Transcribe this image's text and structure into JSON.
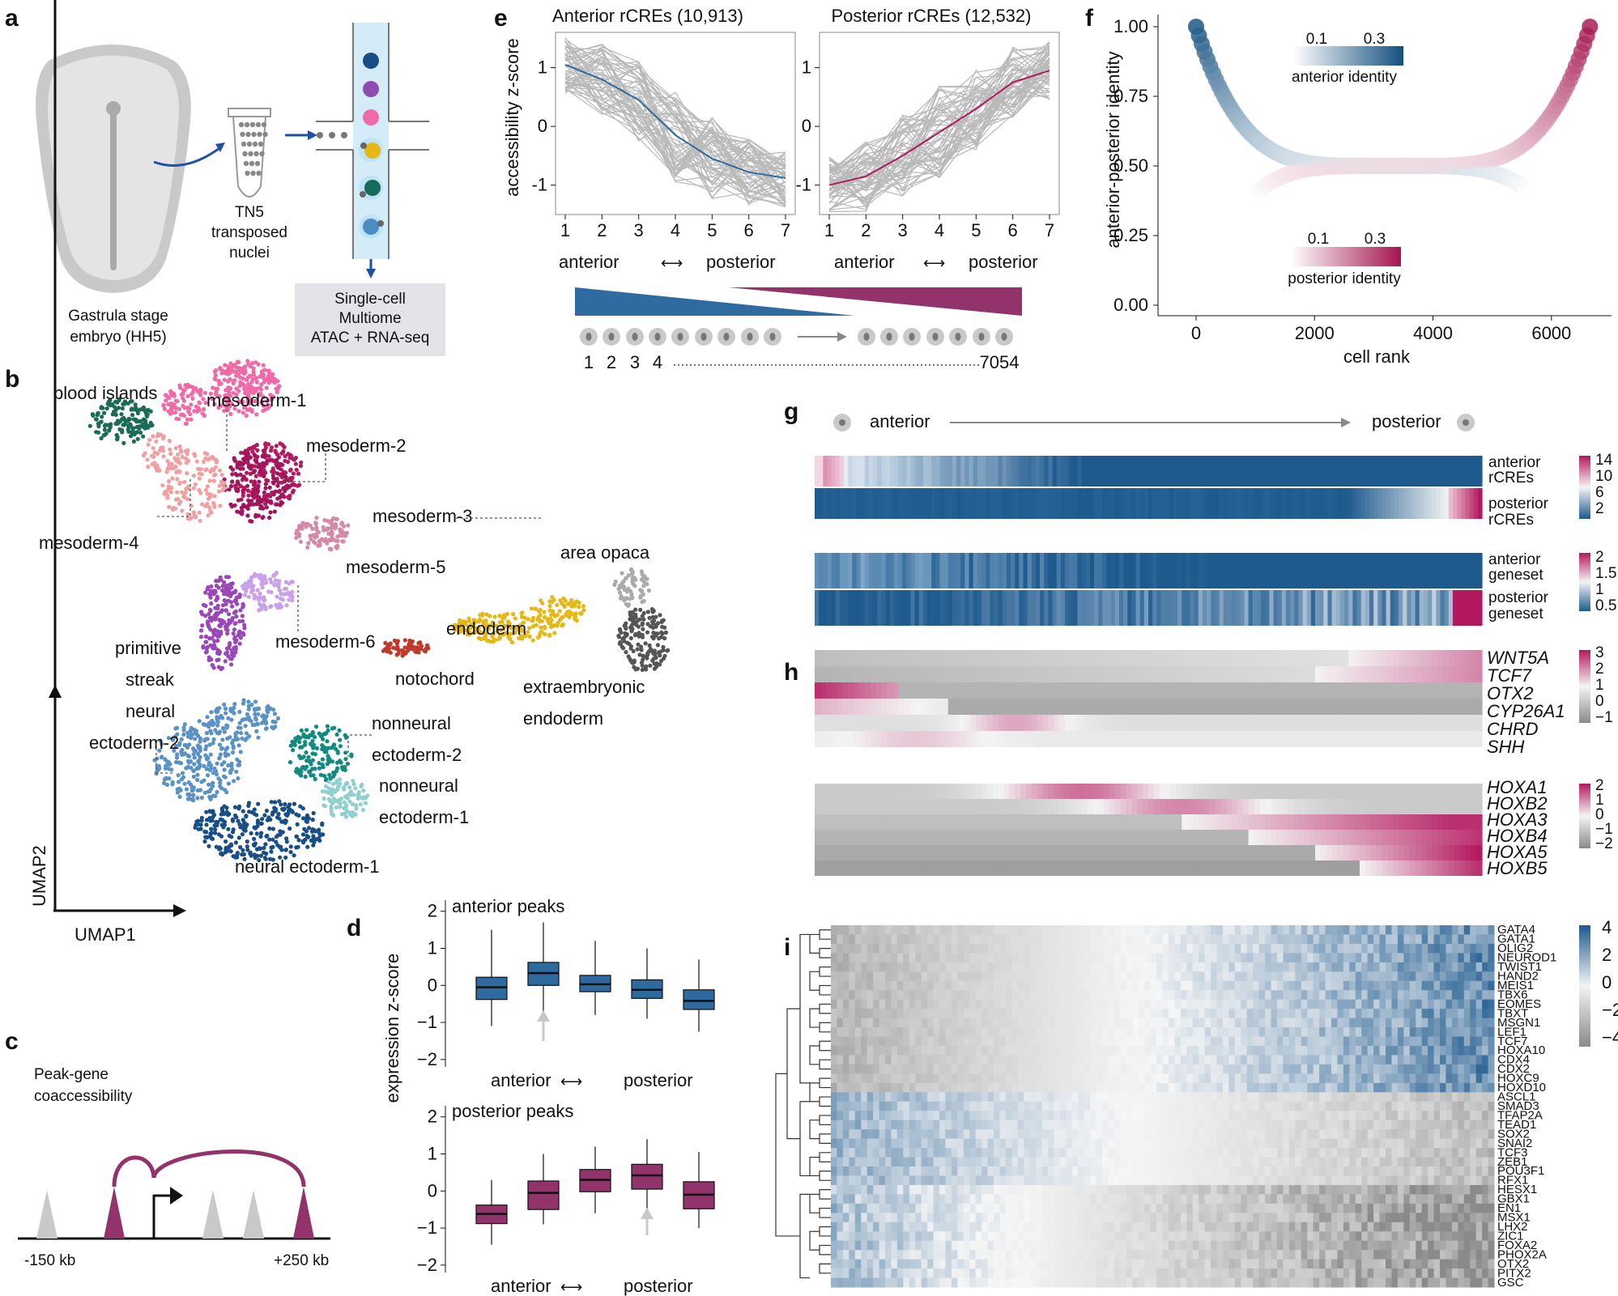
{
  "figure": {
    "panel_letters": [
      "a",
      "b",
      "c",
      "d",
      "e",
      "f",
      "g",
      "h",
      "i"
    ]
  },
  "panel_a": {
    "embryo_label": [
      "Gastrula stage",
      "embryo (HH5)"
    ],
    "tube_label": [
      "TN5",
      "transposed",
      "nuclei"
    ],
    "box_label": [
      "Single-cell",
      "Multiome",
      "ATAC + RNA-seq"
    ]
  },
  "panel_b": {
    "axis_x": "UMAP1",
    "axis_y": "UMAP2",
    "clusters": [
      {
        "label": "blood islands",
        "color": "#1b6b57"
      },
      {
        "label": "mesoderm-1",
        "color": "#f06aa8"
      },
      {
        "label": "mesoderm-2",
        "color": "#b3195f"
      },
      {
        "label": "mesoderm-3",
        "color": "#a0155c"
      },
      {
        "label": "mesoderm-4",
        "color": "#f0a0a0"
      },
      {
        "label": "mesoderm-5",
        "color": "#d28aa8"
      },
      {
        "label": "mesoderm-6",
        "color": "#c9a0ea"
      },
      {
        "label": "primitive",
        "color": "#9a47b8"
      },
      {
        "label": "streak",
        "color": "#9a47b8"
      },
      {
        "label": "neural",
        "color": "#5a92c6"
      },
      {
        "label": "ectoderm-2",
        "color": "#5a92c6"
      },
      {
        "label": "nonneural",
        "color": "#138a80"
      },
      {
        "label": "ectoderm-2",
        "color": "#138a80"
      },
      {
        "label": "nonneural",
        "color": "#8fd0cf"
      },
      {
        "label": "ectoderm-1",
        "color": "#8fd0cf"
      },
      {
        "label": "neural ectoderm-1",
        "color": "#184e86"
      },
      {
        "label": "notochord",
        "color": "#c0392b"
      },
      {
        "label": "endoderm",
        "color": "#e6b815"
      },
      {
        "label": "area opaca",
        "color": "#aaaaaa"
      },
      {
        "label": "extraembryonic",
        "color": "#555555"
      },
      {
        "label": "endoderm",
        "color": "#555555"
      }
    ]
  },
  "panel_c": {
    "title": [
      "Peak-gene",
      "coaccessibility"
    ],
    "left_label": "-150 kb",
    "right_label": "+250 kb"
  },
  "panel_e": {
    "axis_left_label": "accessibility z-score",
    "x_left": "anterior",
    "x_right": "posterior",
    "bottom_numbers": [
      "1",
      "2",
      "3",
      "4",
      "7054"
    ]
  },
  "panel_d": {
    "axis_left_label": "expression z-score",
    "x_left": "anterior",
    "x_right": "posterior"
  },
  "panel_g": {
    "header_left": "anterior",
    "header_right": "posterior",
    "row_labels": [
      [
        "anterior",
        "rCREs"
      ],
      [
        "posterior",
        "rCREs"
      ],
      [
        "anterior",
        "geneset"
      ],
      [
        "posterior",
        "geneset"
      ]
    ],
    "scale1_ticks": [
      "14",
      "10",
      "6",
      "2"
    ],
    "scale2_ticks": [
      "2",
      "1.5",
      "1",
      "0.5"
    ]
  },
  "panel_h": {
    "genes1": [
      "WNT5A",
      "TCF7",
      "OTX2",
      "CYP26A1",
      "CHRD",
      "SHH"
    ],
    "genes2": [
      "HOXA1",
      "HOXB2",
      "HOXA3",
      "HOXB4",
      "HOXA5",
      "HOXB5"
    ],
    "scale1_ticks": [
      "3",
      "2",
      "1",
      "0",
      "−1"
    ],
    "scale2_ticks": [
      "2",
      "1",
      "0",
      "−1",
      "−2"
    ]
  },
  "panel_i": {
    "genes": [
      "GATA4",
      "GATA1",
      "OLIG2",
      "NEUROD1",
      "TWIST1",
      "HAND2",
      "MEIS1",
      "TBX6",
      "EOMES",
      "TBXT",
      "MSGN1",
      "LEF1",
      "TCF7",
      "HOXA10",
      "CDX4",
      "CDX2",
      "HOXC9",
      "HOXD10",
      "ASCL1",
      "SMAD3",
      "TFAP2A",
      "TEAD1",
      "SOX2",
      "SNAI2",
      "TCF3",
      "ZEB1",
      "POU3F1",
      "RFX1",
      "HESX1",
      "GBX1",
      "EN1",
      "MSX1",
      "LHX2",
      "ZIC1",
      "FOXA2",
      "PHOX2A",
      "OTX2",
      "PITX2",
      "GSC"
    ],
    "scale_ticks": [
      "4",
      "2",
      "0",
      "−2",
      "−4"
    ]
  },
  "chart_data": [
    {
      "panel": "e-left",
      "type": "line",
      "title": "Anterior rCREs (10,913)",
      "xlabel": "anterior ↔ posterior",
      "ylabel": "accessibility z-score",
      "x": [
        1,
        2,
        3,
        4,
        5,
        6,
        7
      ],
      "series": [
        {
          "values": [
            1.05,
            0.8,
            0.45,
            -0.15,
            -0.55,
            -0.78,
            -0.88
          ],
          "color": "#2e6aa0"
        }
      ],
      "ylim": [
        -1.5,
        1.6
      ]
    },
    {
      "panel": "e-right",
      "type": "line",
      "title": "Posterior rCREs (12,532)",
      "xlabel": "anterior ↔ posterior",
      "x": [
        1,
        2,
        3,
        4,
        5,
        6,
        7
      ],
      "series": [
        {
          "values": [
            -1.0,
            -0.85,
            -0.5,
            -0.1,
            0.3,
            0.75,
            0.95
          ],
          "color": "#b3195f"
        }
      ],
      "ylim": [
        -1.5,
        1.6
      ]
    },
    {
      "panel": "f",
      "type": "scatter",
      "xlabel": "cell rank",
      "ylabel": "anterior-posterior identity",
      "x_ticks": [
        0,
        2000,
        4000,
        6000
      ],
      "y_ticks": [
        0.0,
        0.25,
        0.5,
        0.75,
        1.0
      ],
      "series": [
        {
          "name": "anterior identity",
          "color_scale_ticks": [
            0.1,
            0.3
          ]
        },
        {
          "name": "posterior identity",
          "color_scale_ticks": [
            0.1,
            0.3
          ]
        }
      ]
    },
    {
      "panel": "d-top",
      "type": "boxplot",
      "title": "anterior peaks",
      "ylabel": "expression z-score",
      "y_ticks": [
        -2,
        -1,
        0,
        1,
        2
      ],
      "boxes": [
        {
          "q1": -0.38,
          "median": -0.05,
          "q3": 0.22,
          "low": -1.1,
          "high": 1.5
        },
        {
          "q1": 0.0,
          "median": 0.33,
          "q3": 0.62,
          "low": -0.85,
          "high": 1.7
        },
        {
          "q1": -0.17,
          "median": 0.03,
          "q3": 0.27,
          "low": -0.8,
          "high": 1.2
        },
        {
          "q1": -0.35,
          "median": -0.12,
          "q3": 0.15,
          "low": -0.9,
          "high": 1.0
        },
        {
          "q1": -0.65,
          "median": -0.42,
          "q3": -0.12,
          "low": -1.25,
          "high": 0.7
        }
      ],
      "color": "#2e6aa0"
    },
    {
      "panel": "d-bottom",
      "type": "boxplot",
      "title": "posterior peaks",
      "ylabel": "expression z-score",
      "y_ticks": [
        -2,
        -1,
        0,
        1,
        2
      ],
      "boxes": [
        {
          "q1": -0.88,
          "median": -0.62,
          "q3": -0.38,
          "low": -1.45,
          "high": 0.3
        },
        {
          "q1": -0.5,
          "median": -0.05,
          "q3": 0.27,
          "low": -0.9,
          "high": 1.0
        },
        {
          "q1": -0.02,
          "median": 0.3,
          "q3": 0.58,
          "low": -0.6,
          "high": 1.2
        },
        {
          "q1": 0.05,
          "median": 0.42,
          "q3": 0.72,
          "low": -0.5,
          "high": 1.4
        },
        {
          "q1": -0.48,
          "median": -0.1,
          "q3": 0.25,
          "low": -1.0,
          "high": 1.05
        }
      ],
      "color": "#93336b"
    }
  ]
}
